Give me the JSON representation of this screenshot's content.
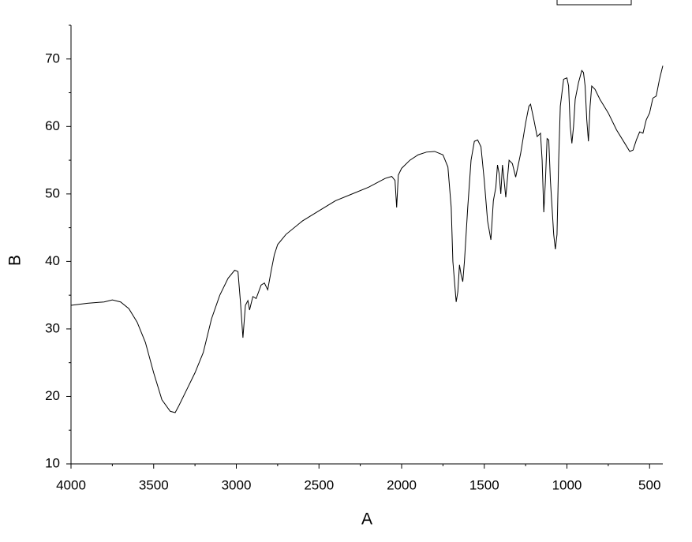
{
  "chart_data": {
    "type": "line",
    "x_label": "A",
    "y_label": "B",
    "xlim": [
      4000,
      420
    ],
    "ylim": [
      10,
      75
    ],
    "xticks": [
      4000,
      3500,
      3000,
      2500,
      2000,
      1500,
      1000,
      500
    ],
    "yticks": [
      10,
      20,
      30,
      40,
      50,
      60,
      70
    ],
    "xminorticks": [
      3750,
      3250,
      2750,
      2250,
      1750,
      1250,
      750
    ],
    "yminorticks": [
      15,
      25,
      35,
      45,
      55,
      65,
      75
    ],
    "color": "#000000",
    "x": [
      4000,
      3900,
      3800,
      3750,
      3700,
      3650,
      3600,
      3550,
      3500,
      3450,
      3400,
      3370,
      3350,
      3300,
      3250,
      3200,
      3150,
      3100,
      3050,
      3010,
      2990,
      2975,
      2960,
      2945,
      2930,
      2920,
      2900,
      2880,
      2850,
      2830,
      2810,
      2790,
      2770,
      2750,
      2700,
      2600,
      2500,
      2400,
      2300,
      2200,
      2100,
      2060,
      2040,
      2030,
      2020,
      2000,
      1950,
      1900,
      1850,
      1800,
      1750,
      1720,
      1700,
      1690,
      1670,
      1660,
      1650,
      1640,
      1630,
      1620,
      1600,
      1580,
      1560,
      1540,
      1520,
      1500,
      1480,
      1460,
      1445,
      1430,
      1420,
      1410,
      1400,
      1390,
      1380,
      1370,
      1350,
      1330,
      1310,
      1280,
      1250,
      1230,
      1220,
      1200,
      1180,
      1160,
      1150,
      1140,
      1130,
      1120,
      1110,
      1100,
      1080,
      1070,
      1060,
      1050,
      1040,
      1020,
      1000,
      990,
      980,
      970,
      960,
      950,
      930,
      910,
      900,
      890,
      880,
      870,
      860,
      850,
      830,
      800,
      750,
      700,
      650,
      620,
      600,
      580,
      560,
      540,
      520,
      500,
      480,
      460,
      440,
      420
    ],
    "values": [
      33.5,
      33.8,
      34.0,
      34.3,
      34.0,
      33.0,
      31,
      28,
      23.5,
      19.5,
      17.8,
      17.6,
      18.5,
      21,
      23.5,
      26.5,
      31.5,
      35,
      37.5,
      38.7,
      38.5,
      34,
      28.7,
      33.5,
      34.2,
      32.8,
      34.8,
      34.5,
      36.5,
      36.8,
      35.8,
      38.5,
      41,
      42.5,
      44,
      46,
      47.5,
      49,
      50,
      51,
      52.3,
      52.6,
      52,
      48,
      52.8,
      53.8,
      55,
      55.8,
      56.2,
      56.3,
      55.8,
      54,
      48,
      40,
      34,
      35.5,
      39.5,
      38,
      37,
      40,
      48,
      55,
      57.8,
      58,
      57,
      52,
      46,
      43.2,
      49,
      51,
      54.3,
      53,
      50,
      54.3,
      52,
      49.5,
      55,
      54.5,
      52.5,
      56,
      60.5,
      63,
      63.3,
      61,
      58.5,
      59,
      55,
      47.3,
      52,
      58.2,
      58,
      52,
      44,
      41.8,
      44,
      55,
      63,
      67,
      67.2,
      66,
      60,
      57.5,
      60,
      64,
      66.5,
      68.3,
      68,
      66,
      61,
      57.8,
      63,
      66,
      65.5,
      64,
      62,
      59.5,
      57.5,
      56.3,
      56.5,
      58,
      59.2,
      59,
      61,
      62,
      64.2,
      64.5,
      67,
      69
    ]
  }
}
